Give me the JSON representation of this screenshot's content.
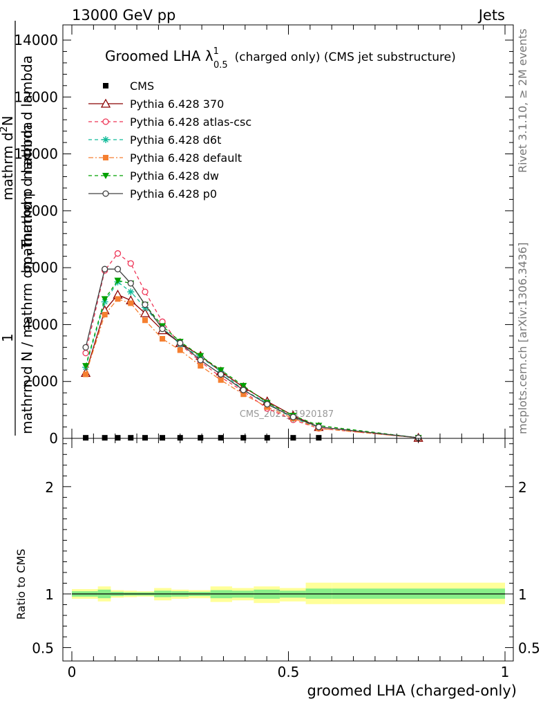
{
  "header": {
    "left": "13000 GeV pp",
    "right": "Jets"
  },
  "side_labels": {
    "rivet": "Rivet 3.1.10, ≥ 2M events",
    "mcplots": "mcplots.cern.ch [arXiv:1306.3436]"
  },
  "watermark": "CMS_2021_I1920187",
  "colors": {
    "cms": "#000000",
    "p370": "#8b0000",
    "atlas_csc": "#ee3355",
    "d6t": "#11bb99",
    "default": "#f57f30",
    "dw": "#00a000",
    "p0": "#404040",
    "band_outer": "#ffff99",
    "band_inner": "#88ee88"
  },
  "chart_data": [
    {
      "type": "line",
      "title_main": "Groomed LHA λ",
      "title_sup": "1",
      "title_sub": "0.5",
      "title_rest": "(charged only) (CMS jet substructure)",
      "ylabel_parts": [
        "1",
        "mathrm d N / mathrm d p",
        "T",
        "mathrm d lambda",
        "mathrm d",
        "2",
        "N"
      ],
      "ylabel": "1 / mathrm d N / mathrm d p_T mathrm d lambda  mathrm d^2 N / mathrm d p_T mathrm d lambda",
      "xlim": [
        0,
        1
      ],
      "ylim": [
        0,
        14000
      ],
      "yticks": [
        0,
        2000,
        4000,
        6000,
        8000,
        10000,
        12000,
        14000
      ],
      "ytick_labels": [
        "0",
        "2000",
        "4000",
        "6000",
        "8000",
        "10000",
        "12000",
        "14000"
      ],
      "x": [
        0.032,
        0.076,
        0.106,
        0.136,
        0.169,
        0.209,
        0.25,
        0.297,
        0.344,
        0.396,
        0.451,
        0.511,
        0.57,
        0.8
      ],
      "series": [
        {
          "name": "CMS",
          "key": "cms",
          "marker": "square",
          "dash": "none",
          "values": [
            20,
            20,
            20,
            20,
            20,
            20,
            20,
            20,
            20,
            20,
            20,
            20,
            20,
            20
          ]
        },
        {
          "name": "Pythia 6.428 370",
          "key": "p370",
          "marker": "triangle-open",
          "dash": "solid",
          "values": [
            2300,
            4500,
            5050,
            4850,
            4400,
            3800,
            3350,
            2900,
            2350,
            1800,
            1300,
            800,
            400,
            20
          ]
        },
        {
          "name": "Pythia 6.428 atlas-csc",
          "key": "atlas_csc",
          "marker": "circle-open",
          "dash": "dashed",
          "values": [
            3000,
            5900,
            6500,
            6150,
            5150,
            4100,
            3300,
            2700,
            2150,
            1650,
            1050,
            650,
            350,
            20
          ]
        },
        {
          "name": "Pythia 6.428 d6t",
          "key": "d6t",
          "marker": "asterisk",
          "dash": "dashed",
          "values": [
            2500,
            4800,
            5500,
            5150,
            4600,
            3900,
            3300,
            2850,
            2350,
            1700,
            1250,
            700,
            400,
            20
          ]
        },
        {
          "name": "Pythia 6.428 default",
          "key": "default",
          "marker": "square",
          "dash": "dashdot",
          "values": [
            2250,
            4350,
            4900,
            4750,
            4150,
            3500,
            3100,
            2550,
            2050,
            1550,
            1100,
            700,
            350,
            20
          ]
        },
        {
          "name": "Pythia 6.428 dw",
          "key": "dw",
          "marker": "triangle-down",
          "dash": "dashed",
          "values": [
            2550,
            4900,
            5550,
            5450,
            4700,
            3950,
            3400,
            2900,
            2400,
            1850,
            1250,
            800,
            450,
            20
          ]
        },
        {
          "name": "Pythia 6.428 p0",
          "key": "p0",
          "marker": "circle-open",
          "dash": "solid",
          "values": [
            3200,
            5950,
            5950,
            5450,
            4700,
            3850,
            3350,
            2750,
            2250,
            1700,
            1200,
            750,
            400,
            20
          ]
        }
      ],
      "legend_position": "top-left"
    },
    {
      "type": "area",
      "ylabel": "Ratio to CMS",
      "xlabel": "groomed LHA (charged-only)",
      "xlim": [
        0,
        1
      ],
      "ylim": [
        0.375,
        2.45
      ],
      "yticks": [
        0.5,
        1,
        2
      ],
      "ytick_labels": [
        "0.5",
        "1",
        "2"
      ],
      "xticks": [
        0,
        0.5,
        1
      ],
      "xtick_labels": [
        "0",
        "0.5",
        "1"
      ],
      "bins": [
        0,
        0.06,
        0.09,
        0.12,
        0.15,
        0.19,
        0.23,
        0.27,
        0.32,
        0.37,
        0.42,
        0.48,
        0.54,
        0.6,
        1.0
      ],
      "band_outer": [
        [
          0.955,
          1.045
        ],
        [
          0.93,
          1.07
        ],
        [
          0.965,
          1.035
        ],
        [
          0.97,
          1.03
        ],
        [
          0.975,
          1.025
        ],
        [
          0.94,
          1.055
        ],
        [
          0.955,
          1.04
        ],
        [
          0.96,
          1.035
        ],
        [
          0.925,
          1.07
        ],
        [
          0.94,
          1.055
        ],
        [
          0.915,
          1.07
        ],
        [
          0.93,
          1.055
        ],
        [
          0.905,
          1.105
        ],
        [
          0.905,
          1.105
        ]
      ],
      "band_inner": [
        [
          0.975,
          1.025
        ],
        [
          0.96,
          1.04
        ],
        [
          0.98,
          1.02
        ],
        [
          0.985,
          1.015
        ],
        [
          0.985,
          1.015
        ],
        [
          0.97,
          1.03
        ],
        [
          0.975,
          1.025
        ],
        [
          0.98,
          1.02
        ],
        [
          0.96,
          1.035
        ],
        [
          0.965,
          1.03
        ],
        [
          0.955,
          1.04
        ],
        [
          0.965,
          1.03
        ],
        [
          0.955,
          1.05
        ],
        [
          0.955,
          1.05
        ]
      ]
    }
  ]
}
